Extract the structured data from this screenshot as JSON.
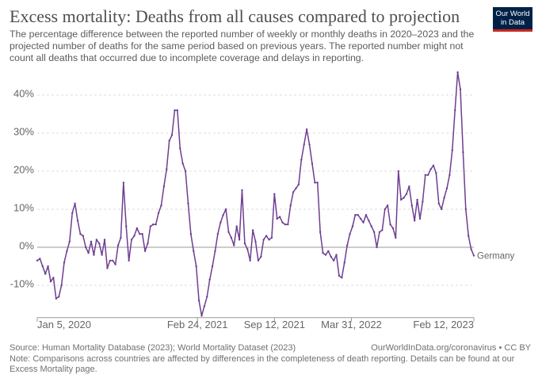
{
  "logo": "Our World in Data",
  "chart_data": {
    "type": "line",
    "title": "Excess mortality: Deaths from all causes compared to projection",
    "subtitle": "The percentage difference between the reported number of weekly or monthly deaths in 2020–2023 and the projected number of deaths for the same period based on previous years. The reported number might not count all deaths that occurred due to incomplete coverage and delays in reporting.",
    "source": "Source: Human Mortality Database (2023); World Mortality Dataset (2023)",
    "credit": "OurWorldInData.org/coronavirus • CC BY",
    "note": "Note: Comparisons across countries are affected by differences in the completeness of death reporting. Details can be found at our Excess Mortality page.",
    "x": [
      "2020-01-05",
      "2020-01-12",
      "2020-01-19",
      "2020-01-26",
      "2020-02-02",
      "2020-02-09",
      "2020-02-16",
      "2020-02-23",
      "2020-03-01",
      "2020-03-08",
      "2020-03-15",
      "2020-03-22",
      "2020-03-29",
      "2020-04-05",
      "2020-04-12",
      "2020-04-19",
      "2020-04-26",
      "2020-05-03",
      "2020-05-10",
      "2020-05-17",
      "2020-05-24",
      "2020-05-31",
      "2020-06-07",
      "2020-06-14",
      "2020-06-21",
      "2020-06-28",
      "2020-07-05",
      "2020-07-12",
      "2020-07-19",
      "2020-07-26",
      "2020-08-02",
      "2020-08-09",
      "2020-08-16",
      "2020-08-23",
      "2020-08-30",
      "2020-09-06",
      "2020-09-13",
      "2020-09-20",
      "2020-09-27",
      "2020-10-04",
      "2020-10-11",
      "2020-10-18",
      "2020-10-25",
      "2020-11-01",
      "2020-11-08",
      "2020-11-15",
      "2020-11-22",
      "2020-11-29",
      "2020-12-06",
      "2020-12-13",
      "2020-12-20",
      "2020-12-27",
      "2021-01-03",
      "2021-01-10",
      "2021-01-17",
      "2021-01-24",
      "2021-01-31",
      "2021-02-07",
      "2021-02-14",
      "2021-02-21",
      "2021-02-28",
      "2021-03-07",
      "2021-03-14",
      "2021-03-21",
      "2021-03-28",
      "2021-04-04",
      "2021-04-11",
      "2021-04-18",
      "2021-04-25",
      "2021-05-02",
      "2021-05-09",
      "2021-05-16",
      "2021-05-23",
      "2021-05-30",
      "2021-06-06",
      "2021-06-13",
      "2021-06-20",
      "2021-06-27",
      "2021-07-04",
      "2021-07-11",
      "2021-07-18",
      "2021-07-25",
      "2021-08-01",
      "2021-08-08",
      "2021-08-15",
      "2021-08-22",
      "2021-08-29",
      "2021-09-05",
      "2021-09-12",
      "2021-09-19",
      "2021-09-26",
      "2021-10-03",
      "2021-10-10",
      "2021-10-17",
      "2021-10-24",
      "2021-10-31",
      "2021-11-07",
      "2021-11-14",
      "2021-11-21",
      "2021-11-28",
      "2021-12-05",
      "2021-12-12",
      "2021-12-19",
      "2021-12-26",
      "2022-01-02",
      "2022-01-09",
      "2022-01-16",
      "2022-01-23",
      "2022-01-30",
      "2022-02-06",
      "2022-02-13",
      "2022-02-20",
      "2022-02-27",
      "2022-03-06",
      "2022-03-13",
      "2022-03-20",
      "2022-03-27",
      "2022-04-03",
      "2022-04-10",
      "2022-04-17",
      "2022-04-24",
      "2022-05-01",
      "2022-05-08",
      "2022-05-15",
      "2022-05-22",
      "2022-05-29",
      "2022-06-05",
      "2022-06-12",
      "2022-06-19",
      "2022-06-26",
      "2022-07-03",
      "2022-07-10",
      "2022-07-17",
      "2022-07-24",
      "2022-07-31",
      "2022-08-07",
      "2022-08-14",
      "2022-08-21",
      "2022-08-28",
      "2022-09-04",
      "2022-09-11",
      "2022-09-18",
      "2022-09-25",
      "2022-10-02",
      "2022-10-09",
      "2022-10-16",
      "2022-10-23",
      "2022-10-30",
      "2022-11-06",
      "2022-11-13",
      "2022-11-20",
      "2022-11-27",
      "2022-12-04",
      "2022-12-11",
      "2022-12-18",
      "2022-12-25",
      "2023-01-01",
      "2023-01-08",
      "2023-01-15",
      "2023-01-22",
      "2023-01-29",
      "2023-02-05",
      "2023-02-12"
    ],
    "series": [
      {
        "name": "Germany",
        "color": "#6d3e91",
        "values": [
          -3.5,
          -3,
          -5,
          -7,
          -5,
          -9,
          -8,
          -13.5,
          -13,
          -10,
          -4,
          -1,
          1.5,
          9,
          11.5,
          7,
          3.5,
          3,
          0,
          -1.5,
          1.5,
          -2,
          2,
          1,
          -2,
          2,
          -5.5,
          -3.5,
          -3.5,
          -4.5,
          0.5,
          2.5,
          17,
          5.5,
          -3.5,
          2,
          3,
          5,
          3.5,
          3.5,
          -1,
          1,
          5.5,
          6,
          6,
          9,
          11,
          16,
          20.5,
          28,
          29.5,
          36,
          36,
          26,
          22,
          20,
          11.5,
          3.5,
          -1,
          -5,
          -14,
          -18,
          -15.5,
          -13,
          -8.5,
          -5,
          -1,
          3.5,
          6.5,
          8.5,
          10,
          4,
          2.5,
          0.5,
          5.5,
          2,
          15,
          1,
          -0.5,
          -3.5,
          4.5,
          1.5,
          -3.5,
          -2.5,
          2,
          3,
          2,
          2.5,
          14,
          7.5,
          8,
          6.5,
          6,
          6,
          11,
          14.5,
          15.5,
          16.5,
          23,
          27,
          31,
          27,
          22,
          17,
          17,
          4,
          -1.5,
          -2,
          -1,
          -2.5,
          -3.5,
          -2,
          -7.5,
          -8,
          -4,
          0.5,
          3.5,
          5.5,
          8.5,
          8.5,
          7.5,
          6.5,
          8.5,
          7,
          5.5,
          4,
          0,
          4,
          4.5,
          10,
          11,
          6,
          5,
          2.5,
          20,
          12.5,
          13,
          14,
          16,
          11,
          7,
          12.5,
          7.5,
          12,
          19,
          19,
          20.5,
          21.5,
          19.5,
          11.5,
          10,
          13,
          15.5,
          19,
          25.5,
          36,
          46,
          41.5,
          25,
          10,
          3,
          -0.5,
          -2.2
        ]
      }
    ],
    "xlim": [
      "2020-01-05",
      "2023-02-12"
    ],
    "xticks": [
      {
        "value": "2020-01-05",
        "label": "Jan 5, 2020"
      },
      {
        "value": "2021-02-24",
        "label": "Feb 24, 2021"
      },
      {
        "value": "2021-09-12",
        "label": "Sep 12, 2021"
      },
      {
        "value": "2022-03-31",
        "label": "Mar 31, 2022"
      },
      {
        "value": "2023-02-12",
        "label": "Feb 12, 2023"
      }
    ],
    "ylim": [
      -18.5,
      47
    ],
    "yticks": [
      {
        "value": -10,
        "label": "-10%"
      },
      {
        "value": 0,
        "label": "0%"
      },
      {
        "value": 10,
        "label": "10%"
      },
      {
        "value": 20,
        "label": "20%"
      },
      {
        "value": 30,
        "label": "30%"
      },
      {
        "value": 40,
        "label": "40%"
      }
    ],
    "grid": true
  }
}
